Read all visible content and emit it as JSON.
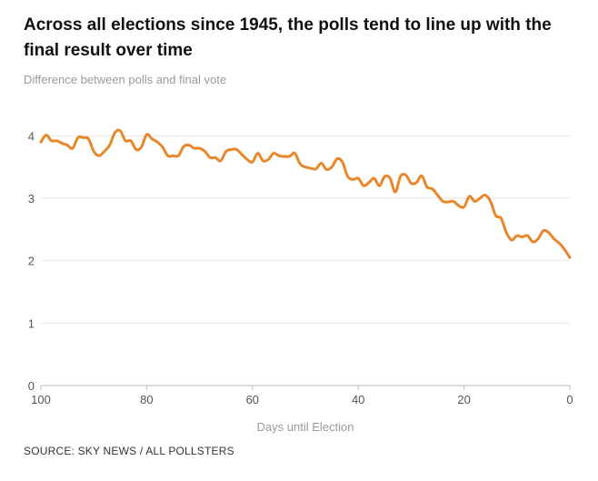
{
  "header": {
    "title": "Across all elections since 1945, the polls tend to line up with the final result over time",
    "subtitle": "Difference between polls and final vote"
  },
  "footer": {
    "source": "SOURCE: SKY NEWS / ALL POLLSTERS"
  },
  "colors": {
    "line": "#e8862a",
    "grid": "#e6e6e6",
    "axis": "#bdbdbd"
  },
  "chart_data": {
    "type": "line",
    "title": "Across all elections since 1945, the polls tend to line up with the final result over time",
    "subtitle": "Difference between polls and final vote",
    "xlabel": "Days until Election",
    "ylabel": "",
    "xlim": [
      100,
      0
    ],
    "ylim": [
      0,
      4.5
    ],
    "x_reversed": true,
    "x_ticks": [
      100,
      80,
      60,
      40,
      20,
      0
    ],
    "y_ticks": [
      0,
      1,
      2,
      3,
      4
    ],
    "grid": "horizontal",
    "legend": "none",
    "series": [
      {
        "x": [
          100,
          99,
          98,
          97,
          96,
          95,
          94,
          93,
          92,
          91,
          90,
          89,
          88,
          87,
          86,
          85,
          84,
          83,
          82,
          81,
          80,
          79,
          78,
          77,
          76,
          75,
          74,
          73,
          72,
          71,
          70,
          69,
          68,
          67,
          66,
          65,
          64,
          63,
          62,
          61,
          60,
          59,
          58,
          57,
          56,
          55,
          54,
          53,
          52,
          51,
          50,
          49,
          48,
          47,
          46,
          45,
          44,
          43,
          42,
          41,
          40,
          39,
          38,
          37,
          36,
          35,
          34,
          33,
          32,
          31,
          30,
          29,
          28,
          27,
          26,
          25,
          24,
          23,
          22,
          21,
          20,
          19,
          18,
          17,
          16,
          15,
          14,
          13,
          12,
          11,
          10,
          9,
          8,
          7,
          6,
          5,
          4,
          3,
          2,
          1,
          0
        ],
        "values": [
          3.9,
          4.01,
          3.92,
          3.92,
          3.88,
          3.85,
          3.8,
          3.97,
          3.97,
          3.95,
          3.75,
          3.68,
          3.75,
          3.85,
          4.05,
          4.08,
          3.92,
          3.92,
          3.78,
          3.82,
          4.02,
          3.95,
          3.9,
          3.82,
          3.68,
          3.68,
          3.68,
          3.83,
          3.85,
          3.8,
          3.8,
          3.75,
          3.65,
          3.65,
          3.6,
          3.75,
          3.78,
          3.78,
          3.7,
          3.62,
          3.58,
          3.72,
          3.6,
          3.62,
          3.72,
          3.68,
          3.67,
          3.67,
          3.72,
          3.55,
          3.5,
          3.48,
          3.47,
          3.56,
          3.46,
          3.5,
          3.63,
          3.58,
          3.35,
          3.3,
          3.32,
          3.2,
          3.25,
          3.32,
          3.2,
          3.35,
          3.32,
          3.1,
          3.35,
          3.37,
          3.24,
          3.25,
          3.36,
          3.18,
          3.15,
          3.05,
          2.95,
          2.94,
          2.95,
          2.88,
          2.86,
          3.03,
          2.95,
          3.0,
          3.05,
          2.95,
          2.72,
          2.68,
          2.45,
          2.33,
          2.4,
          2.38,
          2.4,
          2.3,
          2.35,
          2.48,
          2.45,
          2.35,
          2.28,
          2.18,
          2.05
        ]
      }
    ]
  }
}
